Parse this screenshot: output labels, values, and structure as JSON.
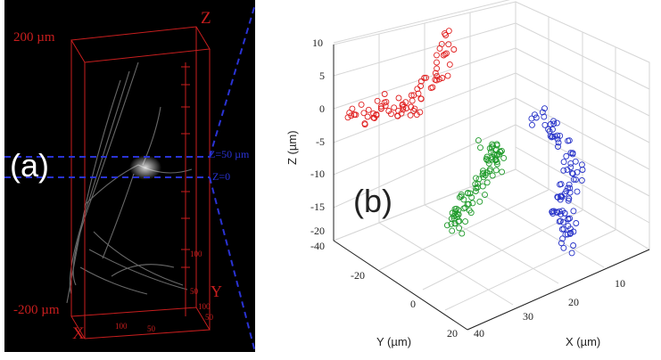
{
  "panel_a": {
    "label": "(a)",
    "top_value": "200 µm",
    "bottom_value": "-200 µm",
    "axis_z": "Z",
    "axis_y": "Y",
    "axis_x": "X",
    "plane_upper": "Z=50 µm",
    "plane_lower": "Z=0",
    "tick_100": "100",
    "tick_50": "50",
    "y_tick_100": "100",
    "y_tick_50": "50",
    "x_tick_100": "100",
    "x_tick_50": "50"
  },
  "panel_b": {
    "label": "(b)",
    "colors": {
      "red": "#e02020",
      "green": "#1f9a2a",
      "blue": "#2531c8"
    }
  },
  "chart_data": {
    "type": "scatter",
    "xlabel": "X (µm)",
    "ylabel": "Y (µm)",
    "zlabel": "Z (µm)",
    "x_ticks": [
      "10",
      "20",
      "30",
      "40"
    ],
    "y_ticks": [
      "-40",
      "-20",
      "0",
      "20"
    ],
    "z_ticks": [
      "10",
      "5",
      "0",
      "-5",
      "-10",
      "-15",
      "-20"
    ],
    "xlim": [
      5,
      40
    ],
    "ylim": [
      -40,
      20
    ],
    "zlim": [
      -20,
      10
    ],
    "series": [
      {
        "color": "red",
        "count": 80
      },
      {
        "color": "green",
        "count": 90
      },
      {
        "color": "blue",
        "count": 95
      }
    ]
  }
}
